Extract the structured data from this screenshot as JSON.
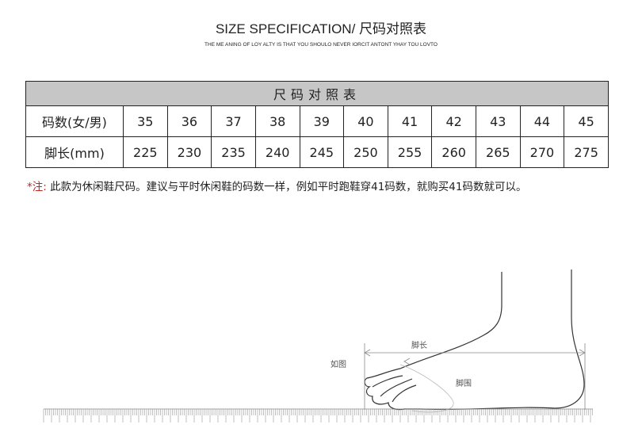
{
  "header": {
    "title": "SIZE SPECIFICATION/ 尺码对照表",
    "subtitle": "THE ME ANING OF LOY ALTY IS THAT YOU SHOULO NEVER IORCIT ANTONT YHAY TOU LOVTO"
  },
  "table": {
    "caption": "尺码对照表",
    "rows": [
      {
        "label": "码数(女/男)",
        "values": [
          "35",
          "36",
          "37",
          "38",
          "39",
          "40",
          "41",
          "42",
          "43",
          "44",
          "45"
        ]
      },
      {
        "label": "脚长(mm)",
        "values": [
          "225",
          "230",
          "235",
          "240",
          "245",
          "250",
          "255",
          "260",
          "265",
          "270",
          "275"
        ]
      }
    ],
    "header_color": "#c6c6c6"
  },
  "note": {
    "prefix": "*注:",
    "text": " 此款为休闲鞋尺码。建议与平时休闲鞋的码数一样，例如平时跑鞋穿41码数，就购买41码数就可以。",
    "prefix_color": "#c0251f"
  },
  "diagram": {
    "foot_length_label": "脚长",
    "as_shown_label": "如图",
    "foot_girth_label": "脚围"
  }
}
